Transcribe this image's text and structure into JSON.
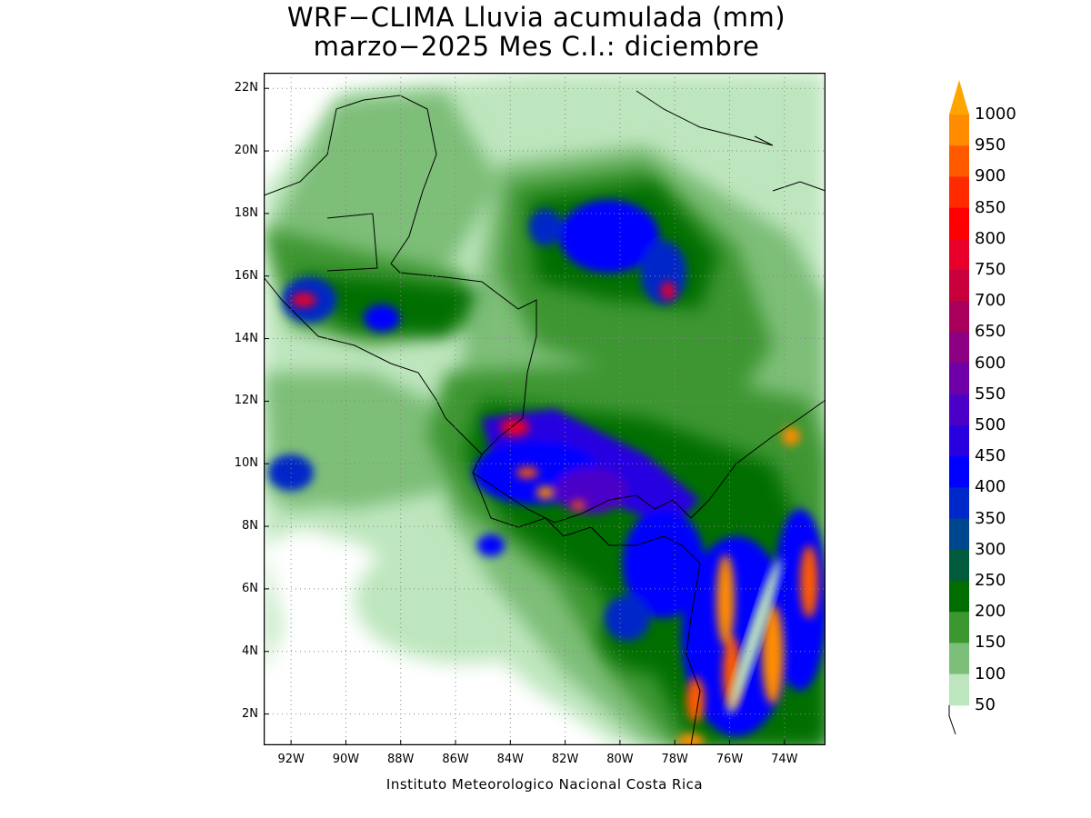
{
  "title": {
    "line1": "WRF−CLIMA Lluvia acumulada (mm)",
    "line2": "marzo−2025 Mes C.I.: diciembre"
  },
  "credit": "Instituto Meteorologico Nacional Costa Rica",
  "map": {
    "lon_range": [
      -93.0,
      -72.5
    ],
    "lat_range": [
      1.0,
      22.5
    ],
    "lat_ticks": [
      "22N",
      "20N",
      "18N",
      "16N",
      "14N",
      "12N",
      "10N",
      "8N",
      "6N",
      "4N",
      "2N"
    ],
    "lat_values": [
      22,
      20,
      18,
      16,
      14,
      12,
      10,
      8,
      6,
      4,
      2
    ],
    "lon_ticks": [
      "92W",
      "90W",
      "88W",
      "86W",
      "84W",
      "82W",
      "80W",
      "78W",
      "76W",
      "74W"
    ],
    "lon_values": [
      -92,
      -90,
      -88,
      -86,
      -84,
      -82,
      -80,
      -78,
      -76,
      -74
    ],
    "grid": "dotted"
  },
  "legend": {
    "levels": [
      "1000",
      "950",
      "900",
      "850",
      "800",
      "750",
      "700",
      "650",
      "600",
      "550",
      "500",
      "450",
      "400",
      "350",
      "300",
      "250",
      "200",
      "150",
      "100",
      "50"
    ],
    "colors": [
      "#ff8c00",
      "#ff5a00",
      "#ff2a00",
      "#ff0000",
      "#e8002a",
      "#c8003c",
      "#a8005a",
      "#8c0082",
      "#6e00a8",
      "#4b00c8",
      "#2800e0",
      "#0000ff",
      "#0028c8",
      "#00468c",
      "#005a3c",
      "#006e00",
      "#3c9632",
      "#7dbe78",
      "#bee6be"
    ],
    "overflow_color": "#ffa500"
  }
}
